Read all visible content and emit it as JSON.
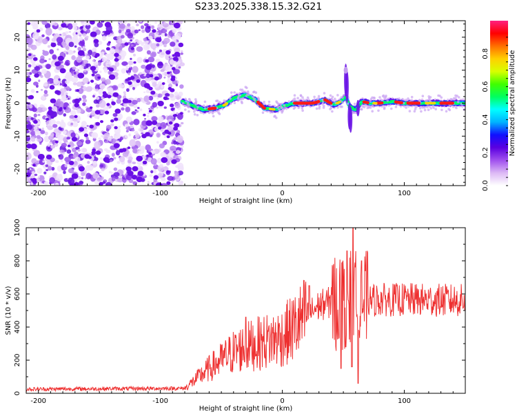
{
  "title": "S233.2025.338.15.32.G21",
  "chart_data": [
    {
      "type": "heatmap",
      "xlabel": "Height of straight line (km)",
      "ylabel": "Frequency (Hz)",
      "xlim": [
        -210,
        150
      ],
      "ylim": [
        -25,
        25
      ],
      "xticks": [
        -200,
        -100,
        0,
        100
      ],
      "yticks": [
        -20,
        -10,
        0,
        10,
        20
      ],
      "colorbar": {
        "label": "Normalized spectral amplitude",
        "range": [
          0,
          1
        ],
        "ticks": [
          "0.0",
          "0.2",
          "0.4",
          "0.6",
          "0.8"
        ],
        "colors": [
          "#ffffff",
          "#dcb8f5",
          "#a050ee",
          "#5a00e0",
          "#1010ff",
          "#00b4ff",
          "#00ffff",
          "#00ff60",
          "#40ff00",
          "#d8ff00",
          "#ffd000",
          "#ff7000",
          "#ff0000",
          "#ff2080"
        ]
      },
      "noise_region_x": [
        -210,
        -82
      ],
      "ridge_profile": [
        {
          "x": -82,
          "f": 0.5
        },
        {
          "x": -75,
          "f": -0.5
        },
        {
          "x": -65,
          "f": -2.0
        },
        {
          "x": -55,
          "f": -1.5
        },
        {
          "x": -47,
          "f": -0.5
        },
        {
          "x": -40,
          "f": 1.5
        },
        {
          "x": -30,
          "f": 2.5
        },
        {
          "x": -22,
          "f": 1.0
        },
        {
          "x": -15,
          "f": -1.5
        },
        {
          "x": -5,
          "f": -2.0
        },
        {
          "x": 0,
          "f": -1.0
        },
        {
          "x": 10,
          "f": 0.0
        },
        {
          "x": 25,
          "f": 0.0
        },
        {
          "x": 35,
          "f": 1.0
        },
        {
          "x": 42,
          "f": -0.5
        },
        {
          "x": 48,
          "f": 0.5
        },
        {
          "x": 52,
          "f": 2.0
        },
        {
          "x": 55,
          "f": -1.0
        },
        {
          "x": 60,
          "f": -2.0
        },
        {
          "x": 65,
          "f": 0.5
        },
        {
          "x": 72,
          "f": 0.0
        },
        {
          "x": 80,
          "f": 0.0
        },
        {
          "x": 90,
          "f": 0.5
        },
        {
          "x": 100,
          "f": 0.0
        },
        {
          "x": 150,
          "f": 0.0
        }
      ]
    },
    {
      "type": "line",
      "xlabel": "Height of straight line (km)",
      "ylabel": "SNR (10 * v/v)",
      "xlim": [
        -210,
        150
      ],
      "ylim": [
        0,
        1000
      ],
      "xticks": [
        -200,
        -100,
        0,
        100
      ],
      "yticks": [
        0,
        200,
        400,
        600,
        800,
        1000
      ],
      "series": [
        {
          "name": "SNR",
          "color": "#ee3030",
          "envelope": [
            {
              "x": -210,
              "y": 25
            },
            {
              "x": -80,
              "y": 30
            },
            {
              "x": -70,
              "y": 90
            },
            {
              "x": -60,
              "y": 150
            },
            {
              "x": -50,
              "y": 200
            },
            {
              "x": -40,
              "y": 250
            },
            {
              "x": -30,
              "y": 280
            },
            {
              "x": -20,
              "y": 300
            },
            {
              "x": -10,
              "y": 320
            },
            {
              "x": 0,
              "y": 340
            },
            {
              "x": 10,
              "y": 400
            },
            {
              "x": 20,
              "y": 470
            },
            {
              "x": 30,
              "y": 530
            },
            {
              "x": 40,
              "y": 550
            },
            {
              "x": 50,
              "y": 560
            },
            {
              "x": 60,
              "y": 560
            },
            {
              "x": 70,
              "y": 560
            },
            {
              "x": 80,
              "y": 565
            },
            {
              "x": 100,
              "y": 565
            },
            {
              "x": 150,
              "y": 560
            }
          ],
          "peaks": [
            {
              "x": -30,
              "y": 460
            },
            {
              "x": 22,
              "y": 650
            },
            {
              "x": 48,
              "y": 820
            },
            {
              "x": 53,
              "y": 860
            },
            {
              "x": 58,
              "y": 1000
            },
            {
              "x": 62,
              "y": 1000
            },
            {
              "x": 65,
              "y": 800
            }
          ],
          "dips": [
            {
              "x": 48,
              "y": 150
            },
            {
              "x": 52,
              "y": 280
            },
            {
              "x": 57,
              "y": 160
            },
            {
              "x": 62,
              "y": 60
            }
          ]
        }
      ]
    }
  ]
}
